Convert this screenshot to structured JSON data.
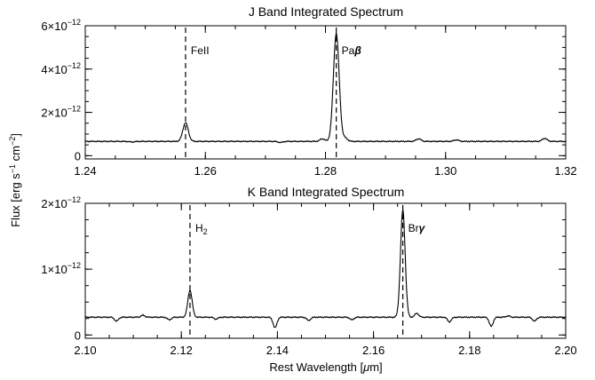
{
  "figure": {
    "ylabel_main": "Flux [erg s",
    "ylabel_sup1": "−1",
    "ylabel_mid": " cm",
    "ylabel_sup2": "−2",
    "ylabel_end": "]",
    "xlabel_main": "Rest Wavelength [",
    "xlabel_mu": "μ",
    "xlabel_end": "m]"
  },
  "chart_data": [
    {
      "type": "line",
      "title": "J Band Integrated Spectrum",
      "xlim": [
        1.24,
        1.32
      ],
      "ylim": [
        -0.15,
        6.0
      ],
      "y_exponent_label": "×10",
      "y_exponent": "−12",
      "x_ticks": [
        1.24,
        1.26,
        1.28,
        1.3,
        1.32
      ],
      "x_tick_labels": [
        "1.24",
        "1.26",
        "1.28",
        "1.30",
        "1.32"
      ],
      "y_ticks": [
        0,
        2,
        4,
        6
      ],
      "y_tick_labels": [
        "0",
        "2",
        "4",
        "6"
      ],
      "continuum": 0.66,
      "lines": [
        {
          "label": "FeII",
          "label_main": "FeII",
          "label_sub": "",
          "x": 1.2567,
          "peak": 1.52,
          "sigma": 0.00045
        },
        {
          "label": "Paβ",
          "label_main": "Pa",
          "label_sub": "β",
          "x": 1.2818,
          "peak": 5.65,
          "sigma": 0.00048
        }
      ],
      "minor_features": [
        {
          "x": 1.2795,
          "depth": 0.12
        },
        {
          "x": 1.2833,
          "depth": 0.15
        },
        {
          "x": 1.2955,
          "depth": 0.12
        },
        {
          "x": 1.3018,
          "depth": 0.07
        },
        {
          "x": 1.3165,
          "depth": 0.14
        },
        {
          "x": 1.2725,
          "depth": -0.05
        },
        {
          "x": 1.2478,
          "depth": -0.03
        }
      ]
    },
    {
      "type": "line",
      "title": "K Band Integrated Spectrum",
      "xlim": [
        2.1,
        2.2
      ],
      "ylim": [
        -0.05,
        2.0
      ],
      "y_exponent_label": "×10",
      "y_exponent": "−12",
      "x_ticks": [
        2.1,
        2.12,
        2.14,
        2.16,
        2.18,
        2.2
      ],
      "x_tick_labels": [
        "2.10",
        "2.12",
        "2.14",
        "2.16",
        "2.18",
        "2.20"
      ],
      "y_ticks": [
        0,
        1,
        2
      ],
      "y_tick_labels": [
        "0",
        "1",
        "2"
      ],
      "continuum": 0.27,
      "lines": [
        {
          "label": "H2",
          "label_main": "H",
          "label_sub": "2",
          "x": 2.1218,
          "peak": 0.68,
          "sigma": 0.00045
        },
        {
          "label": "Brγ",
          "label_main": "Br",
          "label_sub": "γ",
          "x": 2.1661,
          "peak": 1.9,
          "sigma": 0.00048
        }
      ],
      "minor_features": [
        {
          "x": 2.1065,
          "depth": -0.06
        },
        {
          "x": 2.1175,
          "depth": -0.04
        },
        {
          "x": 2.1272,
          "depth": -0.03
        },
        {
          "x": 2.1395,
          "depth": -0.16
        },
        {
          "x": 2.1465,
          "depth": -0.05
        },
        {
          "x": 2.1555,
          "depth": -0.04
        },
        {
          "x": 2.169,
          "depth": 0.06
        },
        {
          "x": 2.1758,
          "depth": -0.07
        },
        {
          "x": 2.1845,
          "depth": -0.14
        },
        {
          "x": 2.1935,
          "depth": -0.06
        },
        {
          "x": 2.112,
          "depth": 0.03
        },
        {
          "x": 2.188,
          "depth": 0.02
        }
      ]
    }
  ]
}
